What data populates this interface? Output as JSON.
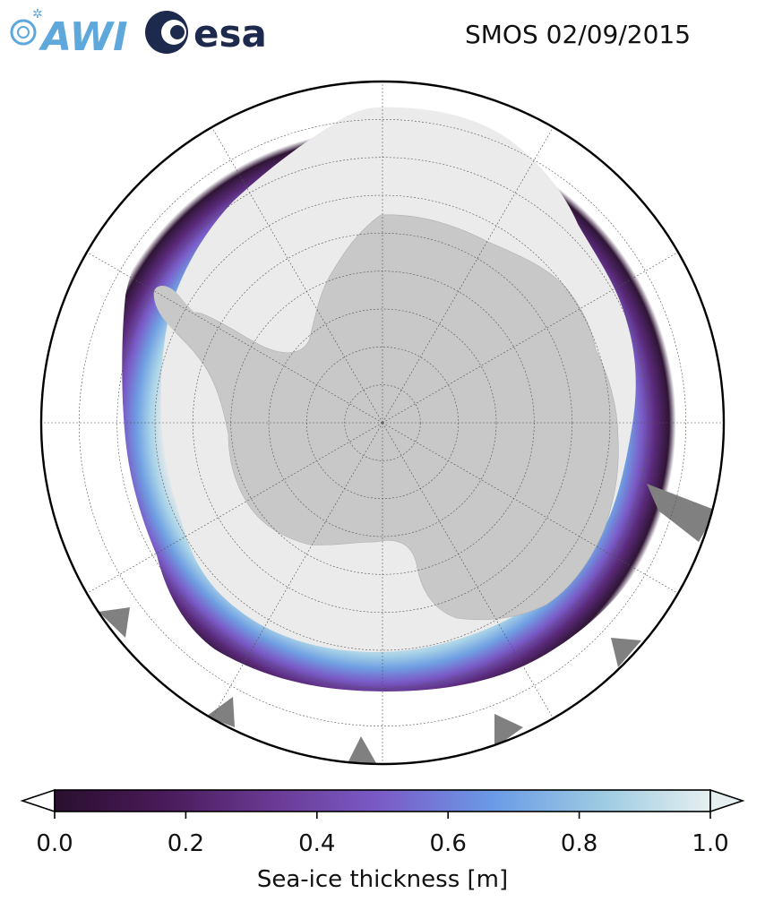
{
  "header": {
    "title": "SMOS 02/09/2015",
    "logos": [
      {
        "name": "AWI",
        "text": "AWI",
        "color": "#5ea8dc"
      },
      {
        "name": "esa",
        "text": "esa",
        "color": "#1d2a4e"
      }
    ]
  },
  "map": {
    "projection": "south-polar-stereographic",
    "colors": {
      "land": "#c8c8c8",
      "thick_ice": "#ebebeb",
      "ocean": "#ffffff",
      "no_data": "#808080",
      "border": "#000000",
      "grid": "#555555"
    },
    "graticule": {
      "parallels": 8,
      "meridians": 12
    }
  },
  "colorbar": {
    "label": "Sea-ice thickness [m]",
    "min": 0.0,
    "max": 1.0,
    "ticks": [
      "0.0",
      "0.2",
      "0.4",
      "0.6",
      "0.8",
      "1.0"
    ],
    "extend": "both",
    "gradient": [
      "#2a0f2e",
      "#4a1a5a",
      "#6a3a94",
      "#7a5cc8",
      "#6a9ae6",
      "#9ccae2",
      "#e6efef"
    ]
  }
}
